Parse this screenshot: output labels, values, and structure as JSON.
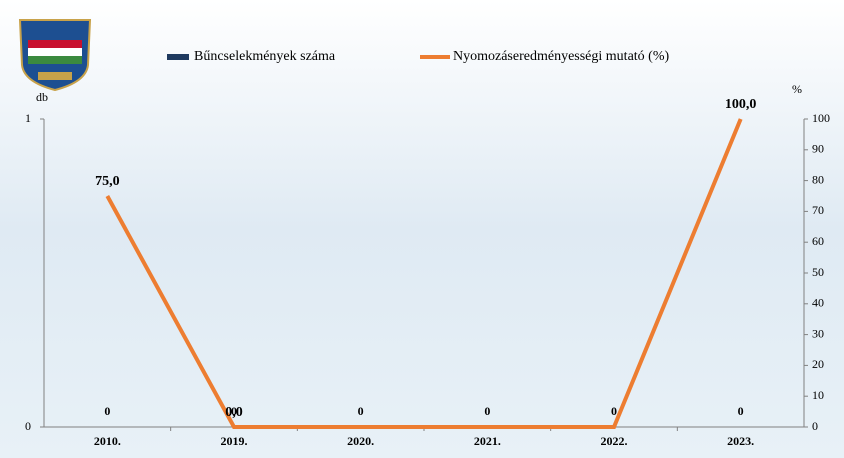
{
  "chart_data": {
    "type": "bar",
    "categories": [
      "2010.",
      "2019.",
      "2020.",
      "2021.",
      "2022.",
      "2023."
    ],
    "series": [
      {
        "name": "Bűncselekmények száma",
        "type": "bar",
        "color": "#1f3a5f",
        "values": [
          0,
          0,
          0,
          0,
          0,
          0
        ]
      },
      {
        "name": "Nyomozáseredményességi mutató (%)",
        "type": "line",
        "axis": "y2",
        "color": "#ed7d31",
        "values": [
          75,
          0,
          0,
          0,
          0,
          100
        ],
        "value_labels": [
          "75,0",
          "0,0",
          null,
          null,
          null,
          "100,0"
        ]
      }
    ],
    "ylabel": "db",
    "y2label": "%",
    "ylim": [
      0,
      1
    ],
    "yticks": [
      0,
      1
    ],
    "y2lim": [
      0,
      100
    ],
    "y2ticks": [
      0,
      10,
      20,
      30,
      40,
      50,
      60,
      70,
      80,
      90,
      100
    ],
    "legend": "top"
  }
}
